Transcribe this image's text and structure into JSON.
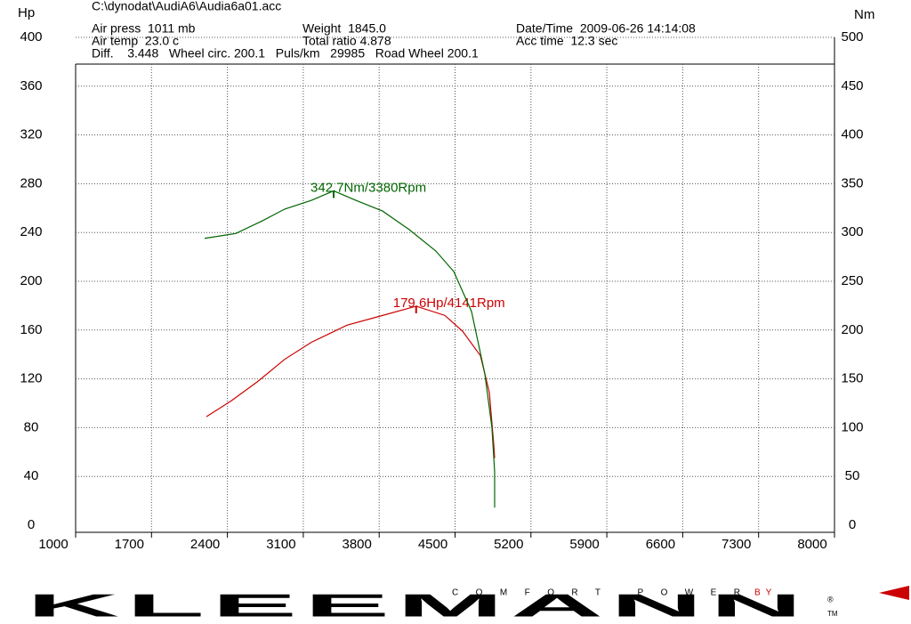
{
  "chart_data": {
    "type": "line",
    "file": "C:\\dynodat\\AudiA6\\Audia6a01.acc",
    "info": [
      "Air press  1011 mb",
      "Weight  1845.0",
      "Date/Time  2009-06-26 14:14:08",
      "Air temp  23.0 c",
      "Total ratio 4.878",
      "Acc time  12.3 sec",
      "Diff.    3.448   Wheel circ. 200.1   Puls/km   29985   Road Wheel 200.1"
    ],
    "y_label": "Hp",
    "y2_label": "Nm",
    "xlim": [
      1000,
      8000
    ],
    "xticks": [
      1000,
      1700,
      2400,
      3100,
      3800,
      4500,
      5200,
      5900,
      6600,
      7300,
      8000
    ],
    "ylim": [
      0,
      400
    ],
    "yticks": [
      0,
      40,
      80,
      120,
      160,
      200,
      240,
      280,
      320,
      360,
      400
    ],
    "y2lim": [
      0,
      500
    ],
    "y2ticks": [
      0,
      50,
      100,
      150,
      200,
      250,
      300,
      350,
      400,
      450,
      500
    ],
    "grid": true,
    "series": [
      {
        "color": "#cc0000",
        "axis": "y",
        "peak_label": "179.6Hp/4141Rpm",
        "x": [
          2206,
          2436,
          2682,
          2928,
          3175,
          3503,
          3831,
          4141,
          4406,
          4570,
          4734,
          4816,
          4857,
          4865
        ],
        "values": [
          89,
          102,
          118,
          136,
          150,
          164,
          172,
          179.6,
          172,
          159,
          139,
          109,
          66,
          55
        ]
      },
      {
        "color": "#006600",
        "axis": "y2",
        "peak_label": "342.7Nm/3380Rpm",
        "x": [
          2190,
          2477,
          2723,
          2928,
          3175,
          3380,
          3585,
          3831,
          4077,
          4323,
          4488,
          4652,
          4775,
          4840,
          4865,
          4865
        ],
        "values": [
          294,
          299,
          312,
          324,
          333,
          342.7,
          333,
          322,
          303,
          281,
          260,
          219,
          155,
          100,
          55,
          18
        ]
      }
    ],
    "logo": {
      "name": "KLEEMANN",
      "tagline": "COMFORT POWER",
      "by": "BY",
      "mark": "®",
      "tm": "TM"
    }
  }
}
